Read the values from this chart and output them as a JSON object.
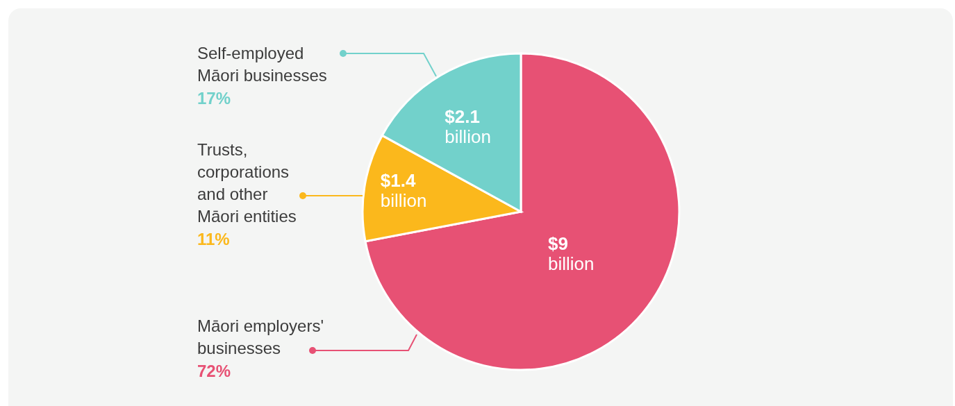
{
  "chart_data": {
    "type": "pie",
    "categories": [
      "Māori employers' businesses",
      "Trusts, corporations and other Māori entities",
      "Self-employed Māori businesses"
    ],
    "values": [
      72,
      11,
      17
    ],
    "colors": [
      "#e75174",
      "#fbb81c",
      "#72d1cb"
    ],
    "value_labels": [
      "72%",
      "11%",
      "17%"
    ],
    "annotations": [
      {
        "text": "$9 billion",
        "x": "Māori employers' businesses"
      },
      {
        "text": "$1.4 billion",
        "x": "Trusts, corporations and other Māori entities"
      },
      {
        "text": "$2.1 billion",
        "x": "Self-employed Māori businesses"
      }
    ]
  }
}
